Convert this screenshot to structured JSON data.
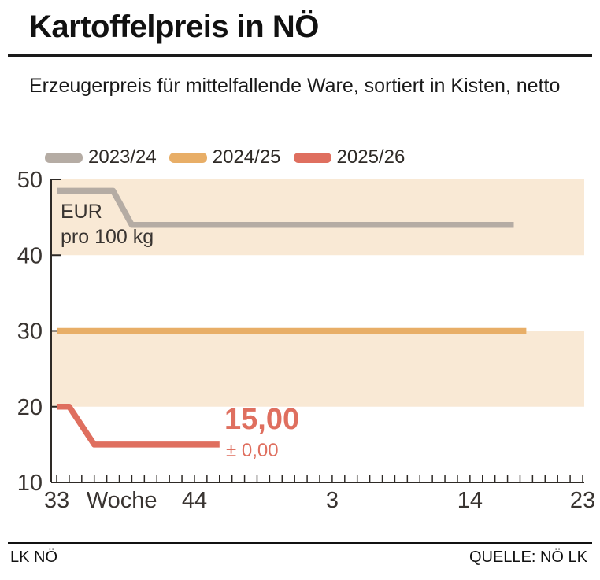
{
  "header": {
    "title": "Kartoffelpreis in NÖ",
    "subtitle": "Erzeugerpreis für mittelfallende Ware, sortiert in Kisten, netto"
  },
  "footer": {
    "left": "LK NÖ",
    "right": "QUELLE: NÖ LK"
  },
  "chart_data": {
    "type": "line",
    "title": "Kartoffelpreis in NÖ",
    "unit_line1": "EUR",
    "unit_line2": "pro 100 kg",
    "band_color": "#f9e9d5",
    "axis_color": "#2e2a26",
    "y_axis": {
      "min": 10,
      "max": 50,
      "ticks": [
        50,
        40,
        30,
        20,
        10
      ]
    },
    "x_axis": {
      "title": "Woche",
      "title_week": 38.2,
      "tick_labels": [
        33,
        44,
        3,
        14,
        23
      ],
      "weeks_start": 33,
      "weeks_end": 23,
      "minor_tick_every_weeks": 1
    },
    "bands": [
      {
        "from": 40,
        "to": 50
      },
      {
        "from": 20,
        "to": 30
      }
    ],
    "series": [
      {
        "name": "2023/24",
        "color": "#b5aca4",
        "points": [
          {
            "week": 33,
            "value": 48.5
          },
          {
            "week": 37.5,
            "value": 48.5
          },
          {
            "week": 39,
            "value": 44
          },
          {
            "week": 17.5,
            "value": 44
          }
        ]
      },
      {
        "name": "2024/25",
        "color": "#e8ae67",
        "points": [
          {
            "week": 33,
            "value": 30
          },
          {
            "week": 18.5,
            "value": 30
          }
        ]
      },
      {
        "name": "2025/26",
        "color": "#df6f5f",
        "points": [
          {
            "week": 33,
            "value": 20
          },
          {
            "week": 34,
            "value": 20
          },
          {
            "week": 36,
            "value": 15
          },
          {
            "week": 46,
            "value": 15
          }
        ]
      }
    ],
    "annotation": {
      "price": "15,00",
      "change": "± 0,00"
    }
  }
}
